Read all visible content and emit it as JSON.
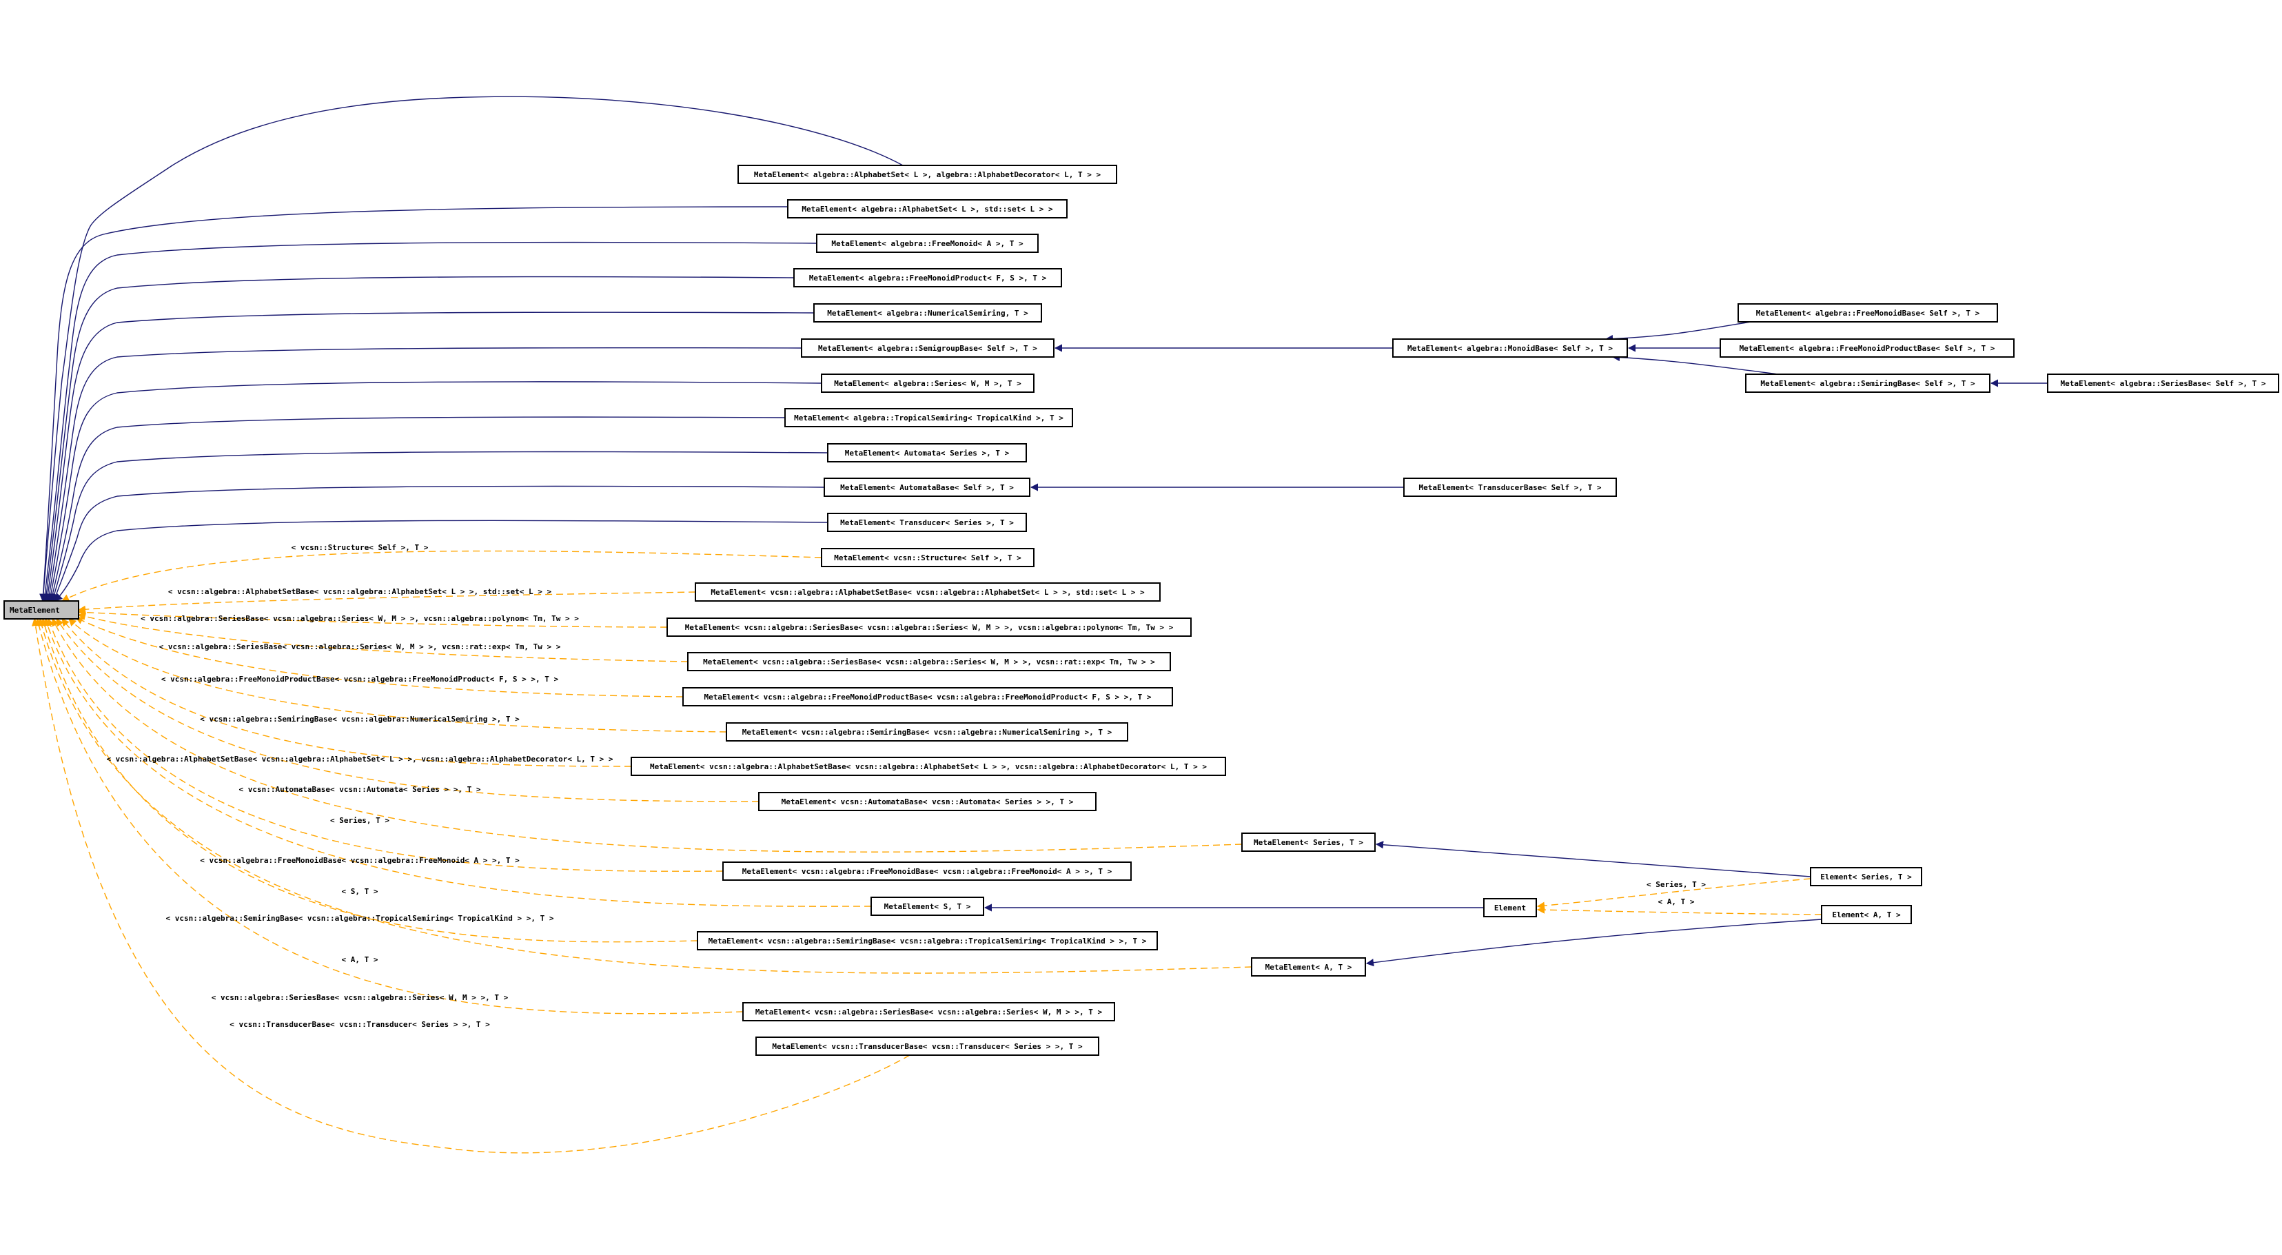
{
  "diagram": {
    "colors": {
      "inheritance_edge": "#191970",
      "template_edge": "#ffa500",
      "root_fill": "#bfbfbf",
      "node_fill": "#ffffff",
      "border": "#000000"
    },
    "nodes": [
      {
        "id": "root",
        "label": "MetaElement"
      },
      {
        "id": "n1",
        "label": "MetaElement< algebra::AlphabetSet< L >, algebra::AlphabetDecorator< L, T > >"
      },
      {
        "id": "n2",
        "label": "MetaElement< algebra::AlphabetSet< L >, std::set< L > >"
      },
      {
        "id": "n3",
        "label": "MetaElement< algebra::FreeMonoid< A >, T >"
      },
      {
        "id": "n4",
        "label": "MetaElement< algebra::FreeMonoidProduct< F, S >, T >"
      },
      {
        "id": "n5",
        "label": "MetaElement< algebra::NumericalSemiring, T >"
      },
      {
        "id": "n6",
        "label": "MetaElement< algebra::SemigroupBase< Self >, T >"
      },
      {
        "id": "n7",
        "label": "MetaElement< algebra::Series< W, M >, T >"
      },
      {
        "id": "n8",
        "label": "MetaElement< algebra::TropicalSemiring< TropicalKind >, T >"
      },
      {
        "id": "n9",
        "label": "MetaElement< Automata< Series >, T >"
      },
      {
        "id": "n10",
        "label": "MetaElement< AutomataBase< Self >, T >"
      },
      {
        "id": "n11",
        "label": "MetaElement< Transducer< Series >, T >"
      },
      {
        "id": "n12",
        "label": "MetaElement< vcsn::Structure< Self >, T >"
      },
      {
        "id": "n13",
        "label": "MetaElement< vcsn::algebra::AlphabetSetBase< vcsn::algebra::AlphabetSet< L > >, std::set< L > >"
      },
      {
        "id": "n14",
        "label": "MetaElement< vcsn::algebra::SeriesBase< vcsn::algebra::Series< W, M > >, vcsn::algebra::polynom< Tm, Tw > >"
      },
      {
        "id": "n15",
        "label": "MetaElement< vcsn::algebra::SeriesBase< vcsn::algebra::Series< W, M > >, vcsn::rat::exp< Tm, Tw > >"
      },
      {
        "id": "n16",
        "label": "MetaElement< vcsn::algebra::FreeMonoidProductBase< vcsn::algebra::FreeMonoidProduct< F, S > >, T >"
      },
      {
        "id": "n17",
        "label": "MetaElement< vcsn::algebra::SemiringBase< vcsn::algebra::NumericalSemiring >, T >"
      },
      {
        "id": "n18",
        "label": "MetaElement< vcsn::algebra::AlphabetSetBase< vcsn::algebra::AlphabetSet< L > >, vcsn::algebra::AlphabetDecorator< L, T > >"
      },
      {
        "id": "n19",
        "label": "MetaElement< vcsn::AutomataBase< vcsn::Automata< Series > >, T >"
      },
      {
        "id": "n20",
        "label": "MetaElement< Series, T >"
      },
      {
        "id": "n21",
        "label": "MetaElement< vcsn::algebra::FreeMonoidBase< vcsn::algebra::FreeMonoid< A > >, T >"
      },
      {
        "id": "n22",
        "label": "MetaElement< S, T >"
      },
      {
        "id": "n23",
        "label": "MetaElement< vcsn::algebra::SemiringBase< vcsn::algebra::TropicalSemiring< TropicalKind > >, T >"
      },
      {
        "id": "n24",
        "label": "MetaElement< A, T >"
      },
      {
        "id": "n25",
        "label": "MetaElement< vcsn::algebra::SeriesBase< vcsn::algebra::Series< W, M > >, T >"
      },
      {
        "id": "n26",
        "label": "MetaElement< vcsn::TransducerBase< vcsn::Transducer< Series > >, T >"
      },
      {
        "id": "m1",
        "label": "MetaElement< algebra::MonoidBase< Self >, T >"
      },
      {
        "id": "m2",
        "label": "MetaElement< algebra::FreeMonoidBase< Self >, T >"
      },
      {
        "id": "m3",
        "label": "MetaElement< algebra::FreeMonoidProductBase< Self >, T >"
      },
      {
        "id": "m4",
        "label": "MetaElement< algebra::SemiringBase< Self >, T >"
      },
      {
        "id": "m5",
        "label": "MetaElement< algebra::SeriesBase< Self >, T >"
      },
      {
        "id": "t1",
        "label": "MetaElement< TransducerBase< Self >, T >"
      },
      {
        "id": "e1",
        "label": "Element< Series, T >"
      },
      {
        "id": "e2",
        "label": "Element"
      },
      {
        "id": "e3",
        "label": "Element< A, T >"
      }
    ],
    "edge_labels": [
      {
        "id": "l12",
        "text": "< vcsn::Structure< Self >, T >"
      },
      {
        "id": "l13",
        "text": "< vcsn::algebra::AlphabetSetBase< vcsn::algebra::AlphabetSet< L > >, std::set< L > >"
      },
      {
        "id": "l14",
        "text": "< vcsn::algebra::SeriesBase< vcsn::algebra::Series< W, M > >, vcsn::algebra::polynom< Tm, Tw > >"
      },
      {
        "id": "l15",
        "text": "< vcsn::algebra::SeriesBase< vcsn::algebra::Series< W, M > >, vcsn::rat::exp< Tm, Tw > >"
      },
      {
        "id": "l16",
        "text": "< vcsn::algebra::FreeMonoidProductBase< vcsn::algebra::FreeMonoidProduct< F, S > >, T >"
      },
      {
        "id": "l17",
        "text": "< vcsn::algebra::SemiringBase< vcsn::algebra::NumericalSemiring >, T >"
      },
      {
        "id": "l18",
        "text": "< vcsn::algebra::AlphabetSetBase< vcsn::algebra::AlphabetSet< L > >, vcsn::algebra::AlphabetDecorator< L, T > >"
      },
      {
        "id": "l19",
        "text": "< vcsn::AutomataBase< vcsn::Automata< Series > >, T >"
      },
      {
        "id": "l20",
        "text": "< Series, T >"
      },
      {
        "id": "l21",
        "text": "< vcsn::algebra::FreeMonoidBase< vcsn::algebra::FreeMonoid< A > >, T >"
      },
      {
        "id": "l22",
        "text": "< S, T >"
      },
      {
        "id": "l23",
        "text": "< vcsn::algebra::SemiringBase< vcsn::algebra::TropicalSemiring< TropicalKind > >, T >"
      },
      {
        "id": "l24",
        "text": "< A, T >"
      },
      {
        "id": "l25",
        "text": "< vcsn::algebra::SeriesBase< vcsn::algebra::Series< W, M > >, T >"
      },
      {
        "id": "l26",
        "text": "< vcsn::TransducerBase< vcsn::Transducer< Series > >, T >"
      },
      {
        "id": "le1",
        "text": "< Series, T >"
      },
      {
        "id": "le3",
        "text": "< A, T >"
      }
    ]
  }
}
